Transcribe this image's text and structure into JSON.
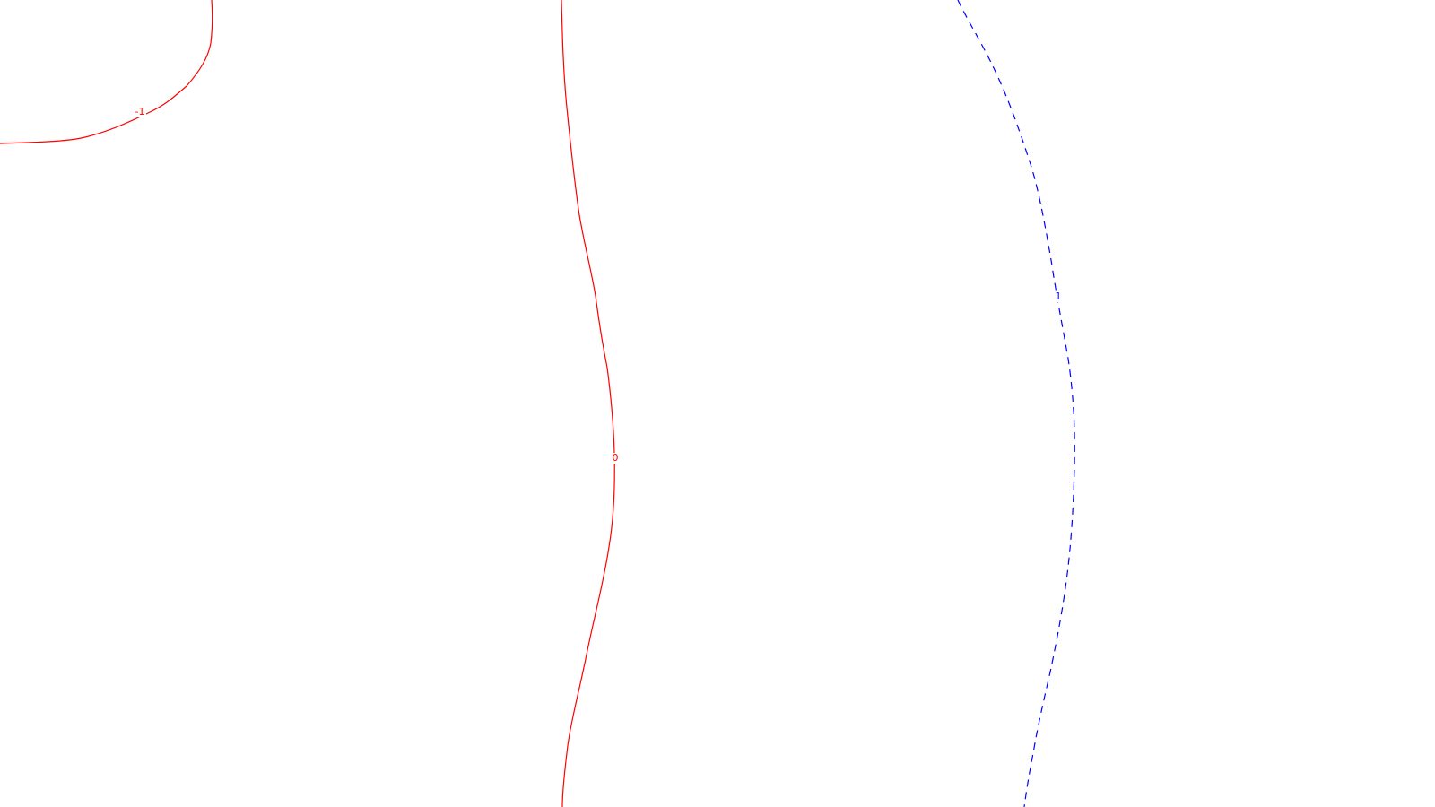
{
  "chart_data": {
    "type": "contour",
    "title": "",
    "xlabel": "",
    "ylabel": "",
    "grid": false,
    "legend": "none",
    "background_color": "#ffffff",
    "contours": [
      {
        "level": "-1",
        "label": "-1",
        "color": "#ff0000",
        "line_style": "solid"
      },
      {
        "level": "0",
        "label": "0",
        "color": "#ff0000",
        "line_style": "solid"
      },
      {
        "level": "1",
        "label": "1",
        "color": "#0000ff",
        "line_style": "dashed"
      }
    ]
  }
}
